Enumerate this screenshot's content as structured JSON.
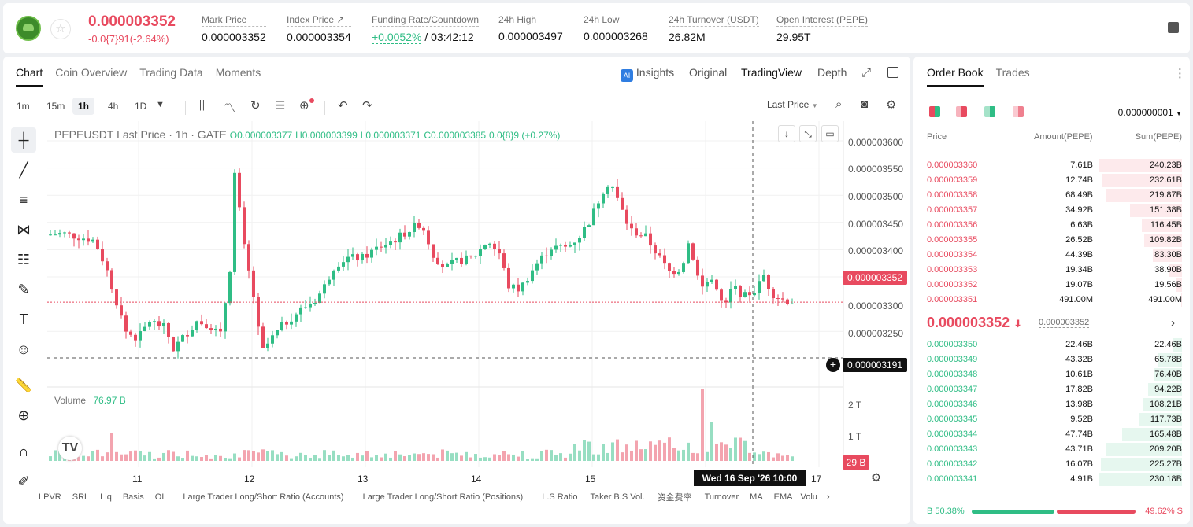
{
  "header": {
    "price": "0.000003352",
    "change": "-0.0{7}91(-2.64%)",
    "stats": [
      {
        "label": "Mark Price",
        "value": "0.000003352"
      },
      {
        "label": "Index Price ↗",
        "value": "0.000003354"
      },
      {
        "label": "Funding Rate/Countdown",
        "value": "+0.0052%",
        "value2": "/ 03:42:12"
      },
      {
        "label": "24h High",
        "value": "0.000003497"
      },
      {
        "label": "24h Low",
        "value": "0.000003268"
      },
      {
        "label": "24h Turnover (USDT)",
        "value": "26.82M"
      },
      {
        "label": "Open Interest (PEPE)",
        "value": "29.95T"
      }
    ]
  },
  "chart_tabs": [
    "Chart",
    "Coin Overview",
    "Trading Data",
    "Moments"
  ],
  "view_controls": {
    "insights": "Insights",
    "original": "Original",
    "tradingview": "TradingView",
    "depth": "Depth"
  },
  "timeframes": [
    "1m",
    "15m",
    "1h",
    "4h",
    "1D"
  ],
  "price_type": "Last Price",
  "legend": {
    "symbol": "PEPEUSDT Last Price · 1h · GATE",
    "o": "O0.000003377",
    "h": "H0.000003399",
    "l": "L0.000003371",
    "c": "C0.000003385",
    "chg": "0.0{8}9 (+0.27%)"
  },
  "volume_legend": {
    "label": "Volume",
    "value": "76.97 B"
  },
  "current_price_badge": "0.000003352",
  "crosshair_price_badge": "0.000003191",
  "volume_badge": "29 B",
  "crosshair_date": "Wed 16 Sep '26   10:00",
  "bottom_indicators": [
    "LPVR",
    "SRL",
    "Liq",
    "Basis",
    "OI",
    "Large Trader Long/Short Ratio (Accounts)",
    "Large Trader Long/Short Ratio (Positions)",
    "L.S Ratio",
    "Taker B.S Vol.",
    "资金费率",
    "Turnover",
    "MA",
    "EMA",
    "Volu"
  ],
  "colors": {
    "up": "#2fbd85",
    "down": "#e84a5f"
  },
  "chart_data": {
    "type": "candlestick",
    "y_ticks": [
      "0.000003600",
      "0.000003550",
      "0.000003500",
      "0.000003450",
      "0.000003400",
      "0.000003350",
      "0.000003300",
      "0.000003250"
    ],
    "ylim": [
      3.191e-06,
      3.6e-06
    ],
    "x_ticks": [
      "11",
      "12",
      "13",
      "14",
      "15",
      "17"
    ],
    "volume_ticks": [
      "2 T",
      "1 T"
    ],
    "last": 3.352e-06,
    "volume_last": "29 B"
  },
  "order_book": {
    "tabs": [
      "Order Book",
      "Trades"
    ],
    "precision": "0.000000001",
    "columns": [
      "Price",
      "Amount(PEPE)",
      "Sum(PEPE)"
    ],
    "asks": [
      {
        "price": "0.000003360",
        "amount": "7.61B",
        "sum": "240.23B",
        "depth": 1.0
      },
      {
        "price": "0.000003359",
        "amount": "12.74B",
        "sum": "232.61B",
        "depth": 0.97
      },
      {
        "price": "0.000003358",
        "amount": "68.49B",
        "sum": "219.87B",
        "depth": 0.92
      },
      {
        "price": "0.000003357",
        "amount": "34.92B",
        "sum": "151.38B",
        "depth": 0.63
      },
      {
        "price": "0.000003356",
        "amount": "6.63B",
        "sum": "116.45B",
        "depth": 0.49
      },
      {
        "price": "0.000003355",
        "amount": "26.52B",
        "sum": "109.82B",
        "depth": 0.46
      },
      {
        "price": "0.000003354",
        "amount": "44.39B",
        "sum": "83.30B",
        "depth": 0.35
      },
      {
        "price": "0.000003353",
        "amount": "19.34B",
        "sum": "38.90B",
        "depth": 0.16
      },
      {
        "price": "0.000003352",
        "amount": "19.07B",
        "sum": "19.56B",
        "depth": 0.08
      },
      {
        "price": "0.000003351",
        "amount": "491.00M",
        "sum": "491.00M",
        "depth": 0.01
      }
    ],
    "mid_price": "0.000003352",
    "mid_mark": "0.000003352",
    "bids": [
      {
        "price": "0.000003350",
        "amount": "22.46B",
        "sum": "22.46B",
        "depth": 0.1
      },
      {
        "price": "0.000003349",
        "amount": "43.32B",
        "sum": "65.78B",
        "depth": 0.29
      },
      {
        "price": "0.000003348",
        "amount": "10.61B",
        "sum": "76.40B",
        "depth": 0.33
      },
      {
        "price": "0.000003347",
        "amount": "17.82B",
        "sum": "94.22B",
        "depth": 0.41
      },
      {
        "price": "0.000003346",
        "amount": "13.98B",
        "sum": "108.21B",
        "depth": 0.47
      },
      {
        "price": "0.000003345",
        "amount": "9.52B",
        "sum": "117.73B",
        "depth": 0.51
      },
      {
        "price": "0.000003344",
        "amount": "47.74B",
        "sum": "165.48B",
        "depth": 0.72
      },
      {
        "price": "0.000003343",
        "amount": "43.71B",
        "sum": "209.20B",
        "depth": 0.91
      },
      {
        "price": "0.000003342",
        "amount": "16.07B",
        "sum": "225.27B",
        "depth": 0.98
      },
      {
        "price": "0.000003341",
        "amount": "4.91B",
        "sum": "230.18B",
        "depth": 1.0
      }
    ],
    "ratio_buy_label": "B 50.38%",
    "ratio_sell_label": "49.62% S",
    "ratio_buy": 0.5038
  }
}
